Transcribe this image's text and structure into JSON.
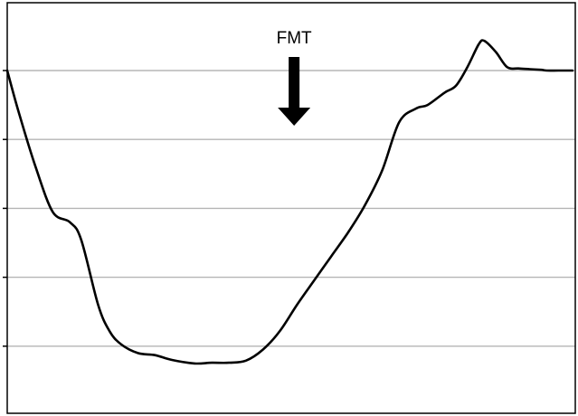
{
  "chart_data": {
    "type": "line",
    "title": "",
    "xlabel": "",
    "ylabel": "",
    "grid": true,
    "xlim": [
      0,
      100
    ],
    "ylim": [
      0,
      6
    ],
    "y_gridlines": [
      1,
      2,
      3,
      4,
      5
    ],
    "series": [
      {
        "x": [
          0,
          2,
          5,
          8,
          11,
          13,
          16,
          18,
          20,
          23,
          26,
          29,
          33,
          36,
          39,
          42,
          45,
          48,
          51,
          54,
          57,
          60,
          63,
          66,
          69,
          72,
          74,
          77,
          79,
          81,
          83,
          84,
          86,
          88,
          90,
          92,
          94,
          95,
          97,
          99.5
        ],
        "y": [
          5.0,
          4.4,
          3.6,
          2.95,
          2.8,
          2.55,
          1.6,
          1.22,
          1.03,
          0.9,
          0.87,
          0.8,
          0.75,
          0.76,
          0.76,
          0.79,
          0.95,
          1.22,
          1.6,
          1.95,
          2.3,
          2.65,
          3.05,
          3.55,
          4.25,
          4.45,
          4.5,
          4.68,
          4.78,
          5.05,
          5.38,
          5.43,
          5.27,
          5.05,
          5.03,
          5.02,
          5.01,
          5.0,
          5.0,
          5.0
        ]
      }
    ],
    "annotations": [
      {
        "text": "FMT",
        "x": 50.5,
        "marker": "down-arrow"
      }
    ]
  }
}
